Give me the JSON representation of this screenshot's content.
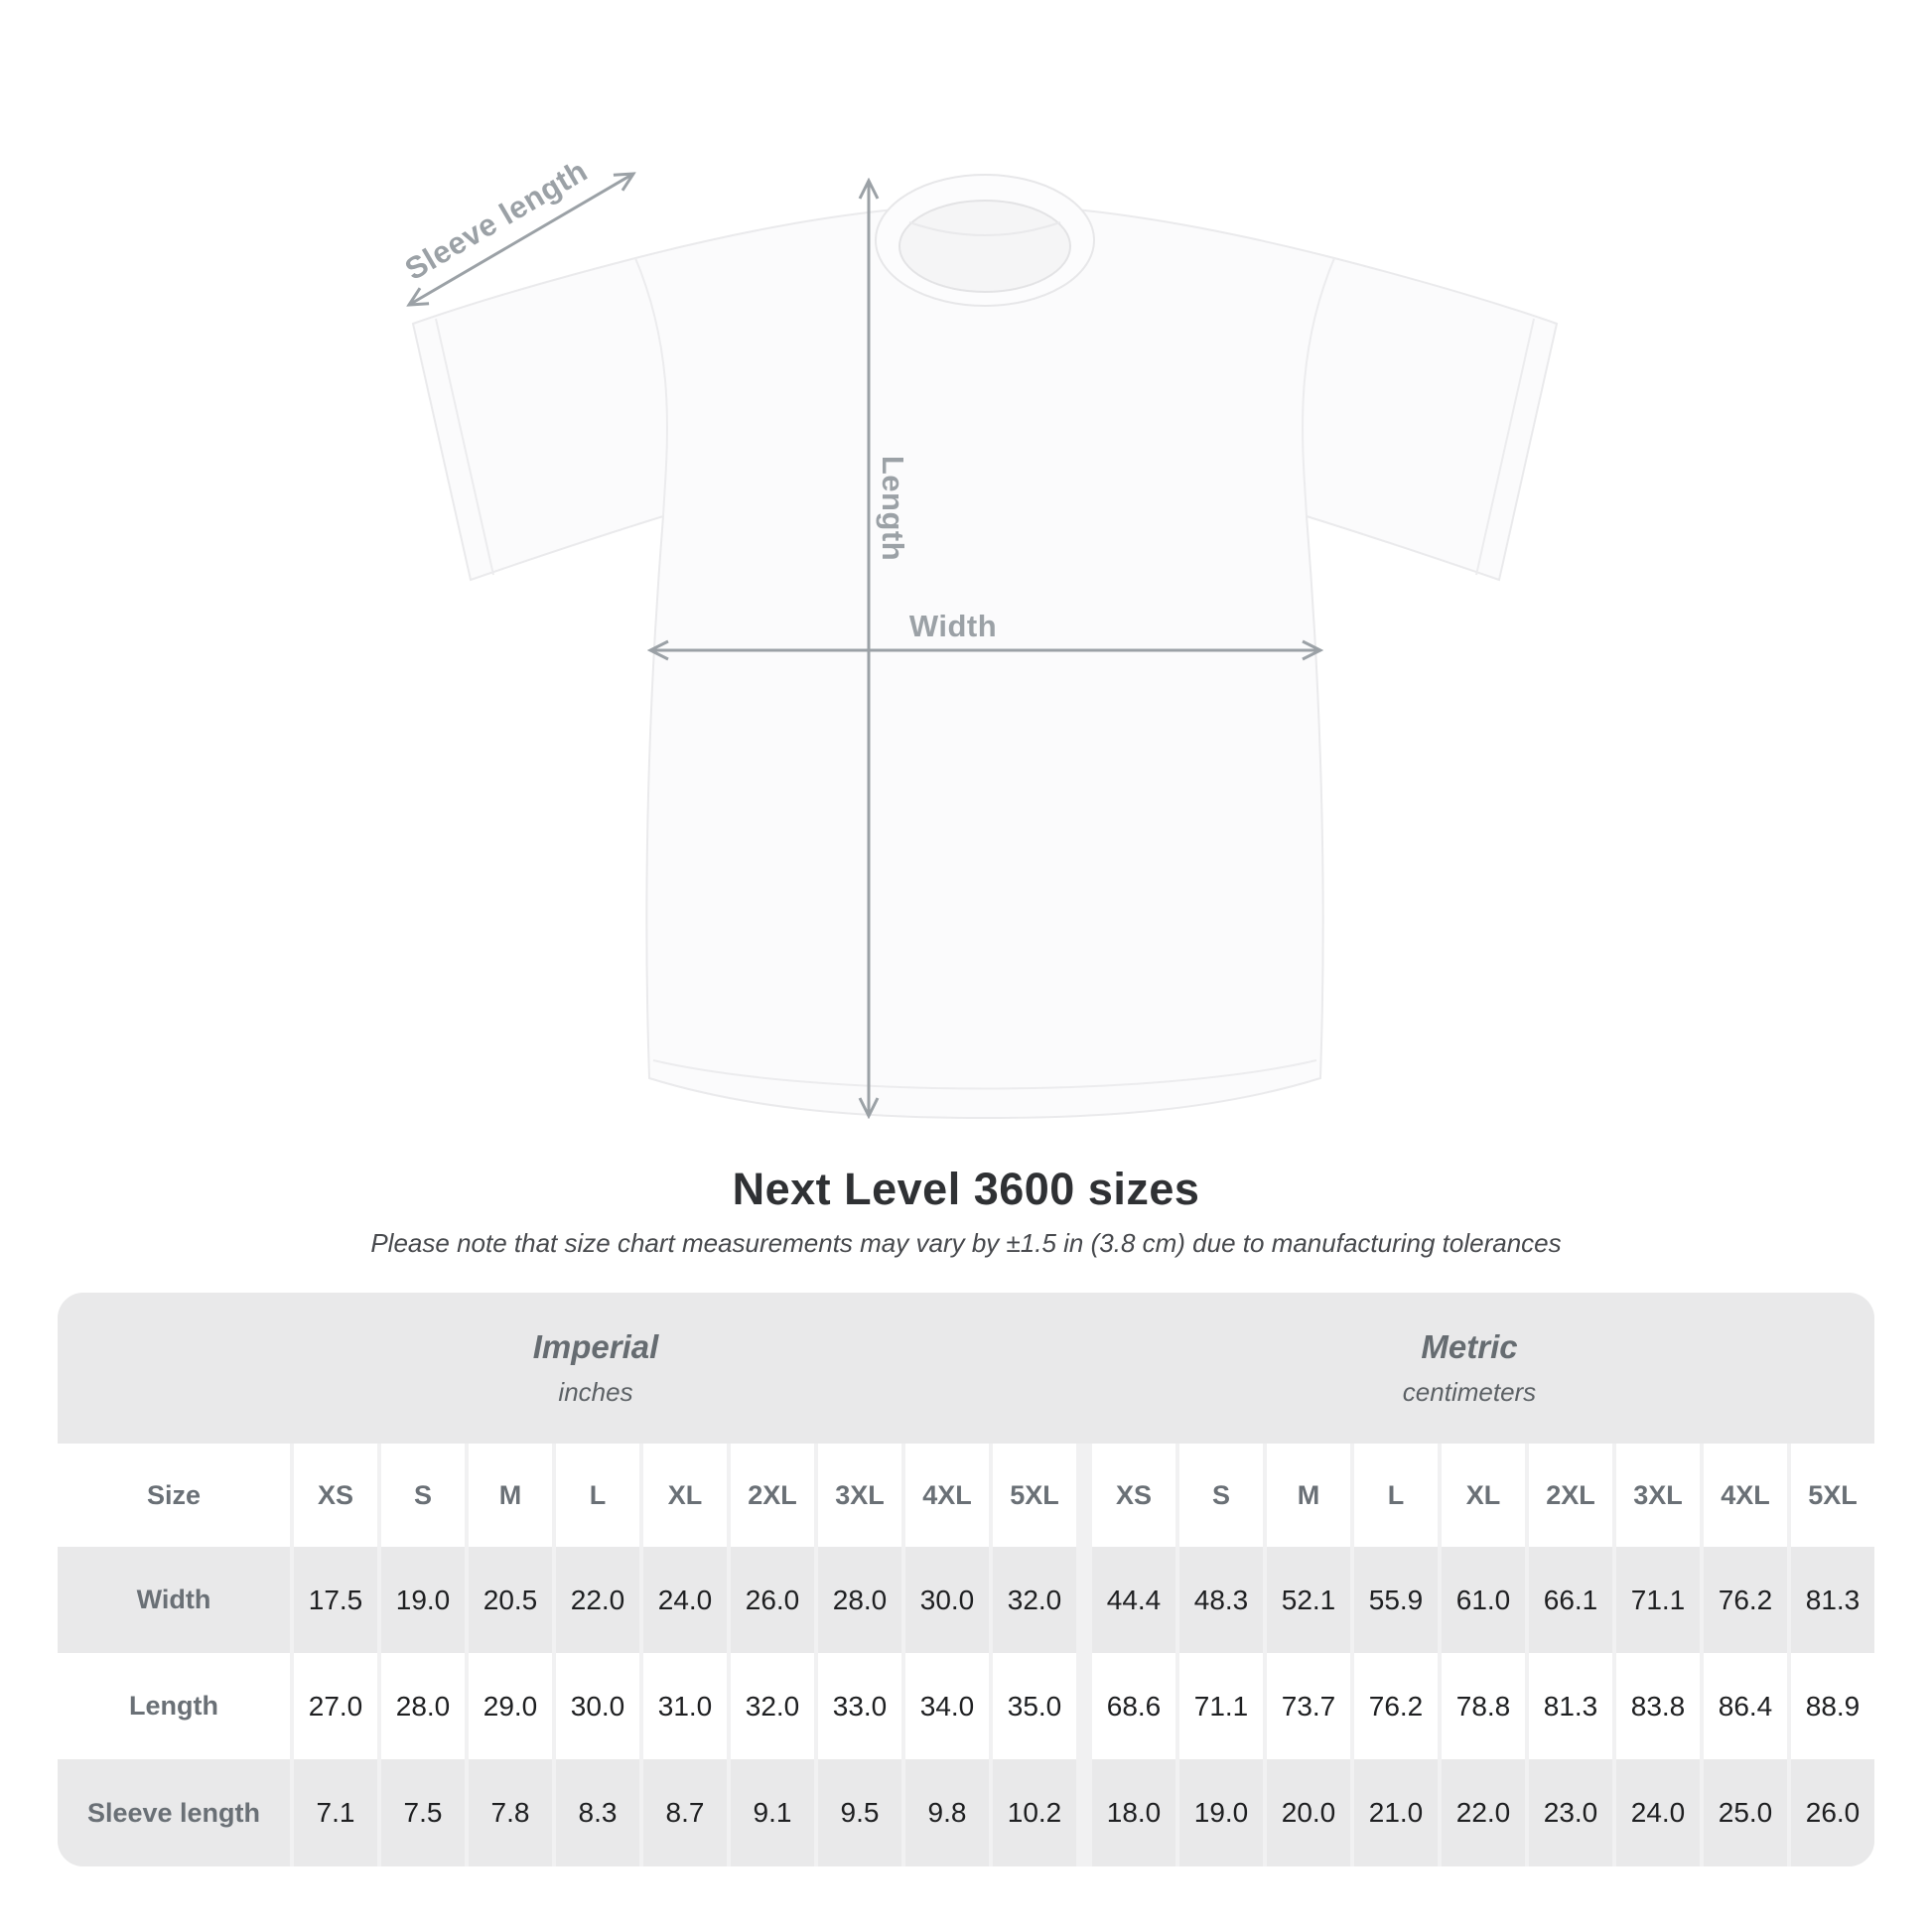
{
  "diagram": {
    "sleeve_length_label": "Sleeve length",
    "length_label": "Length",
    "width_label": "Width"
  },
  "heading": {
    "title": "Next Level 3600 sizes",
    "subtitle": "Please note that size chart measurements may vary by ±1.5 in (3.8 cm) due to manufacturing tolerances"
  },
  "size_chart": {
    "groups": [
      {
        "name": "Imperial",
        "unit": "inches"
      },
      {
        "name": "Metric",
        "unit": "centimeters"
      }
    ],
    "size_col_header": "Size",
    "sizes": [
      "XS",
      "S",
      "M",
      "L",
      "XL",
      "2XL",
      "3XL",
      "4XL",
      "5XL"
    ],
    "rows": [
      {
        "label": "Width",
        "imperial": [
          "17.5",
          "19.0",
          "20.5",
          "22.0",
          "24.0",
          "26.0",
          "28.0",
          "30.0",
          "32.0"
        ],
        "metric": [
          "44.4",
          "48.3",
          "52.1",
          "55.9",
          "61.0",
          "66.1",
          "71.1",
          "76.2",
          "81.3"
        ]
      },
      {
        "label": "Length",
        "imperial": [
          "27.0",
          "28.0",
          "29.0",
          "30.0",
          "31.0",
          "32.0",
          "33.0",
          "34.0",
          "35.0"
        ],
        "metric": [
          "68.6",
          "71.1",
          "73.7",
          "76.2",
          "78.8",
          "81.3",
          "83.8",
          "86.4",
          "88.9"
        ]
      },
      {
        "label": "Sleeve length",
        "imperial": [
          "7.1",
          "7.5",
          "7.8",
          "8.3",
          "8.7",
          "9.1",
          "9.5",
          "9.8",
          "10.2"
        ],
        "metric": [
          "18.0",
          "19.0",
          "20.0",
          "21.0",
          "22.0",
          "23.0",
          "24.0",
          "25.0",
          "26.0"
        ]
      }
    ]
  },
  "colors": {
    "stripe_gray": "#e9e9ea",
    "separator_gray": "#f1f1f2",
    "header_text_gray": "#6a7076",
    "data_text": "#1e1f21",
    "arrow_gray": "#9ba1a6",
    "title_text": "#2f3134",
    "subtitle_text": "#47494d"
  },
  "chart_data": {
    "type": "table",
    "title": "Next Level 3600 sizes",
    "note": "Please note that size chart measurements may vary by ±1.5 in (3.8 cm) due to manufacturing tolerances",
    "column_groups": [
      "Imperial (inches)",
      "Metric (centimeters)"
    ],
    "sizes": [
      "XS",
      "S",
      "M",
      "L",
      "XL",
      "2XL",
      "3XL",
      "4XL",
      "5XL"
    ],
    "rows": [
      {
        "label": "Width",
        "imperial_inches": [
          17.5,
          19.0,
          20.5,
          22.0,
          24.0,
          26.0,
          28.0,
          30.0,
          32.0
        ],
        "metric_cm": [
          44.4,
          48.3,
          52.1,
          55.9,
          61.0,
          66.1,
          71.1,
          76.2,
          81.3
        ]
      },
      {
        "label": "Length",
        "imperial_inches": [
          27.0,
          28.0,
          29.0,
          30.0,
          31.0,
          32.0,
          33.0,
          34.0,
          35.0
        ],
        "metric_cm": [
          68.6,
          71.1,
          73.7,
          76.2,
          78.8,
          81.3,
          83.8,
          86.4,
          88.9
        ]
      },
      {
        "label": "Sleeve length",
        "imperial_inches": [
          7.1,
          7.5,
          7.8,
          8.3,
          8.7,
          9.1,
          9.5,
          9.8,
          10.2
        ],
        "metric_cm": [
          18.0,
          19.0,
          20.0,
          21.0,
          22.0,
          23.0,
          24.0,
          25.0,
          26.0
        ]
      }
    ]
  }
}
